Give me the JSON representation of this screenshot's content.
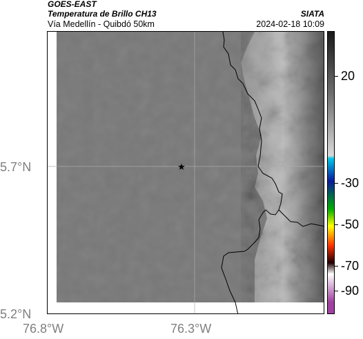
{
  "header": {
    "satellite": "GOES-EAST",
    "product": "Temperatura de Brillo CH13",
    "region": "Vía Medellín - Quibdó 50km",
    "agency": "SIATA",
    "datetime": "2024-02-18 10:09"
  },
  "map": {
    "latitude_labels": [
      "5.7°N",
      "5.2°N"
    ],
    "longitude_labels": [
      "76.8°W",
      "76.3°W"
    ],
    "marker": "star-icon",
    "colors": {
      "cold_cloud": "#cfcfcf",
      "warm_ground": "#777777",
      "border_line": "#000000"
    }
  },
  "colorbar": {
    "tick_labels": [
      "20",
      "-30",
      "-50",
      "-70",
      "-90"
    ],
    "colors": [
      "#1a1a1a",
      "#6e6e6e",
      "#d9d9d9",
      "#00c8e6",
      "#0a1a9e",
      "#00b000",
      "#ffff00",
      "#ff3000",
      "#200000",
      "#ffffff",
      "#a040a0"
    ]
  }
}
